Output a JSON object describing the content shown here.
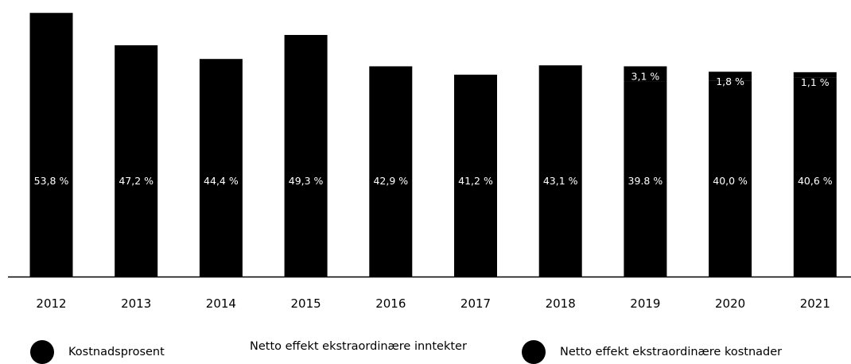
{
  "chart_data": {
    "type": "bar",
    "stacked": true,
    "categories": [
      "2012",
      "2013",
      "2014",
      "2015",
      "2016",
      "2017",
      "2018",
      "2019",
      "2020",
      "2021"
    ],
    "series": [
      {
        "name": "Kostnadsprosent",
        "values": [
          53.8,
          47.2,
          44.4,
          49.3,
          42.9,
          41.2,
          43.1,
          39.8,
          40.0,
          40.6
        ],
        "labels": [
          "53,8 %",
          "47,2 %",
          "44,4 %",
          "49,3 %",
          "42,9 %",
          "41,2 %",
          "43,1 %",
          "39.8 %",
          "40,0 %",
          "40,6 %"
        ],
        "color": "#000000"
      },
      {
        "name": "Netto effekt ekstraordinære inntekter",
        "values": [
          null,
          null,
          null,
          null,
          null,
          null,
          null,
          null,
          null,
          null
        ],
        "labels": [
          "",
          "",
          "",
          "",
          "",
          "",
          "",
          "",
          "",
          ""
        ],
        "color": "#000000"
      },
      {
        "name": "Netto effekt ekstraordinære kostnader",
        "values": [
          0,
          0,
          0,
          0,
          0,
          0,
          0,
          3.1,
          1.8,
          1.1
        ],
        "labels": [
          "",
          "",
          "",
          "",
          "",
          "",
          "",
          "3,1 %",
          "1,8 %",
          "1,1 %"
        ],
        "color": "#000000"
      }
    ],
    "title": "",
    "xlabel": "",
    "ylabel": "",
    "ylim": [
      0,
      54
    ],
    "grid": false,
    "legend_position": "bottom"
  },
  "legend": {
    "items": [
      {
        "label": "Kostnadsprosent",
        "icon": "filled-circle-icon",
        "color": "#000000"
      },
      {
        "label": "Netto effekt ekstraordinære inntekter",
        "icon": "none",
        "color": "#000000"
      },
      {
        "label": "Netto effekt ekstraordinære kostnader",
        "icon": "filled-circle-icon",
        "color": "#000000"
      }
    ]
  }
}
